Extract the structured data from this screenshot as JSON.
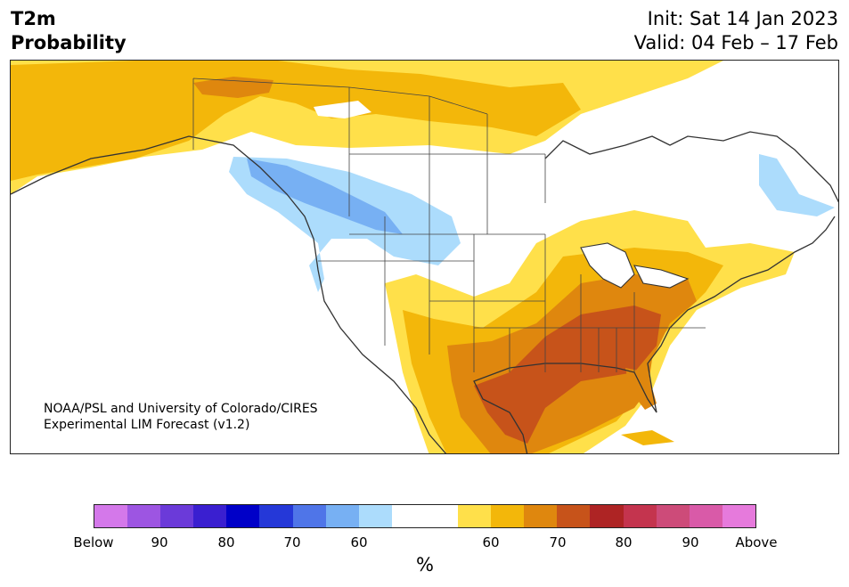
{
  "header": {
    "title_line1": "T2m",
    "title_line2": "Probability",
    "init": "Init: Sat 14 Jan 2023",
    "valid": "Valid: 04 Feb – 17 Feb"
  },
  "map": {
    "credit_line1": "NOAA/PSL and University of Colorado/CIRES",
    "credit_line2": "Experimental LIM Forecast (v1.2)"
  },
  "colorbar": {
    "colors": [
      "#d478ea",
      "#9d55e2",
      "#6b3ad9",
      "#3a1fd0",
      "#0000c8",
      "#2538d8",
      "#4f75e8",
      "#77b0f3",
      "#acdcfc",
      "#ffffff",
      "#ffffff",
      "#ffe04a",
      "#f3b70a",
      "#df870e",
      "#c7531a",
      "#ae2424",
      "#c4344e",
      "#cd4b79",
      "#d95aa8",
      "#e67adc"
    ],
    "labels": [
      "Below",
      "90",
      "80",
      "70",
      "60",
      "60",
      "70",
      "80",
      "90",
      "Above"
    ],
    "unit": "%"
  },
  "legend_colors": {
    "above_60": "#ffe04a",
    "above_65": "#f3b70a",
    "above_70": "#df870e",
    "above_75": "#c7531a",
    "below_60": "#acdcfc",
    "below_65": "#77b0f3"
  }
}
